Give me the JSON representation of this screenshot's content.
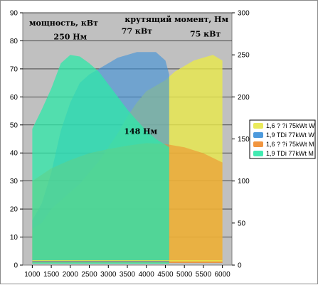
{
  "chart_data": {
    "type": "area",
    "y_left_title": "мощность, кВт",
    "y_right_title": "крутящий момент, Нм",
    "x_ticks": [
      1000,
      1500,
      2000,
      2500,
      3000,
      3500,
      4000,
      4500,
      5000,
      5500,
      6000
    ],
    "y_left_ticks": [
      0,
      10,
      20,
      30,
      40,
      50,
      60,
      70,
      80,
      90
    ],
    "y_right_ticks": [
      0,
      50,
      100,
      150,
      200,
      250,
      300
    ],
    "xlim": [
      750,
      6250
    ],
    "ylim_left": [
      0,
      90
    ],
    "ylim_right": [
      0,
      300
    ],
    "grid": true,
    "legend_position": "right",
    "series": [
      {
        "name": "1,6 ? ?i 75kWt W",
        "color": "#e8e84a",
        "opacity": 0.8,
        "axis": "left",
        "x": [
          1000,
          1250,
          1500,
          1750,
          2000,
          2250,
          2500,
          2750,
          3000,
          3250,
          3500,
          3750,
          4000,
          4250,
          4500,
          4750,
          5000,
          5250,
          5500,
          5750,
          6000
        ],
        "values": [
          13,
          15,
          20,
          23,
          26,
          29,
          33,
          37,
          42,
          47,
          53,
          58,
          62,
          64,
          66,
          69,
          71,
          73,
          74,
          75,
          73
        ]
      },
      {
        "name": "1,9 TDi 77kWt W",
        "color": "#3a8fd8",
        "opacity": 0.6,
        "axis": "left",
        "x": [
          1000,
          1250,
          1500,
          1750,
          2000,
          2250,
          2500,
          2750,
          3000,
          3250,
          3500,
          3750,
          4000,
          4250,
          4500,
          4600
        ],
        "values": [
          16,
          22,
          33,
          48,
          58,
          65,
          68,
          70,
          72,
          74,
          75,
          76,
          76,
          76,
          73,
          68
        ]
      },
      {
        "name": "1,6 ? ?i 75kWt M",
        "color": "#f08a2a",
        "opacity": 0.55,
        "axis": "right",
        "x": [
          1000,
          1500,
          2000,
          2500,
          3000,
          3500,
          4000,
          4500,
          5000,
          5500,
          6000
        ],
        "values": [
          100,
          115,
          125,
          133,
          138,
          142,
          145,
          144,
          140,
          133,
          122
        ]
      },
      {
        "name": "1,9 TDi 77kWt M",
        "color": "#2ee8a8",
        "opacity": 0.75,
        "axis": "right",
        "x": [
          1000,
          1250,
          1500,
          1750,
          2000,
          2250,
          2500,
          2750,
          3000,
          3250,
          3500,
          3750,
          4000,
          4250,
          4500,
          4600
        ],
        "values": [
          162,
          185,
          210,
          240,
          250,
          248,
          240,
          230,
          215,
          200,
          185,
          172,
          160,
          150,
          143,
          140
        ]
      }
    ],
    "annotations": [
      {
        "text": "250 Нм",
        "x": 2000,
        "y_left": 80.5
      },
      {
        "text": "77 кВт",
        "x": 3750,
        "y_left": 82.5
      },
      {
        "text": "75 кВт",
        "x": 5550,
        "y_left": 81.5
      },
      {
        "text": "148 Нм",
        "x": 3850,
        "y_left": 46.8
      }
    ]
  }
}
